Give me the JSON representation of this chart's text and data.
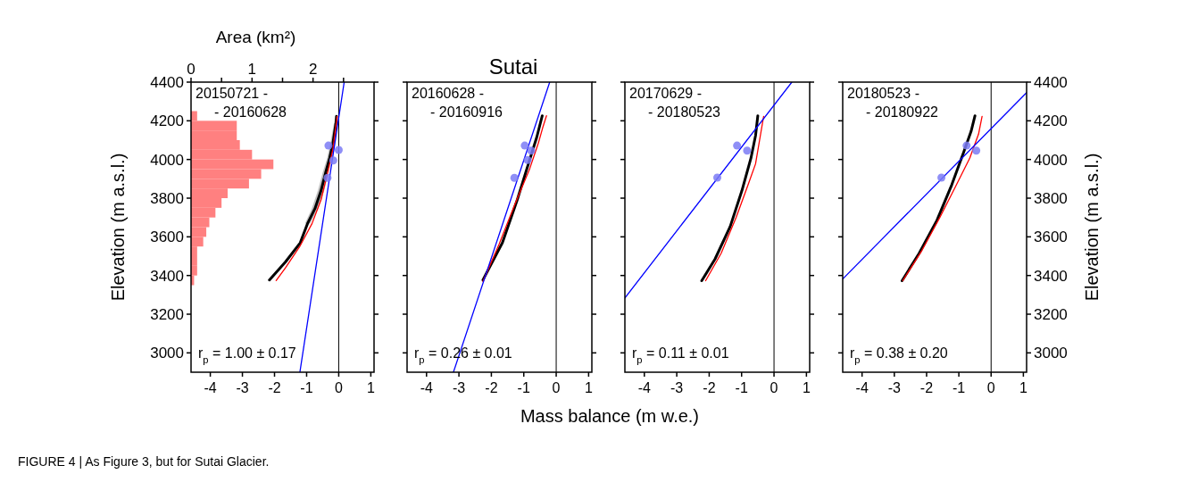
{
  "chart_data": [
    {
      "type": "histogram",
      "orientation": "horizontal",
      "xlabel": "Area (km²)",
      "xlim": [
        0,
        3
      ],
      "xticks": [
        0,
        {
          "value": 0.5,
          "label": null
        },
        1,
        {
          "value": 1.5,
          "label": null
        },
        2,
        {
          "value": 2.5,
          "label": null
        }
      ],
      "ylim": [
        2900,
        4400
      ],
      "tick_labels": "x",
      "color": "#ff8080",
      "bins": [
        3350,
        3400,
        3450,
        3500,
        3550,
        3600,
        3650,
        3700,
        3750,
        3800,
        3850,
        3900,
        3950,
        4000,
        4050,
        4100,
        4150,
        4200,
        4250
      ],
      "values": [
        0.05,
        0.1,
        0.1,
        0.1,
        0.2,
        0.25,
        0.3,
        0.4,
        0.5,
        0.6,
        0.95,
        1.15,
        1.35,
        1.0,
        0.8,
        0.75,
        0.75,
        0.1
      ]
    },
    {
      "type": "line",
      "orientation": "horizontal",
      "ylabel": "Elevation (m a.s.l.)",
      "xlim": [
        -4.6,
        1.1
      ],
      "xticks": [
        -4,
        -3,
        -2,
        -1,
        0,
        1
      ],
      "ylim": [
        2900,
        4400
      ],
      "yticks": [
        3000,
        3200,
        3400,
        3600,
        3800,
        4000,
        4200,
        4400
      ],
      "annotations": [
        "20150721 -\n- 20160628",
        "r$_{p}$ = 1.00 ± 0.17",
        "FIGURE 4 | As Figure 3, but for Sutai Glacier."
      ],
      "ref_lines": [
        {
          "axis": "x",
          "value": 0,
          "color": "#000000"
        }
      ],
      "series": [
        {
          "type": "line",
          "color": "#000000",
          "x": [
            3377,
            3470,
            3569,
            3669,
            3746,
            3839,
            3931,
            4008,
            4085,
            4185,
            4223
          ],
          "values": [
            -2.16,
            -1.66,
            -1.2,
            -0.97,
            -0.74,
            -0.55,
            -0.41,
            -0.28,
            -0.18,
            -0.09,
            -0.07
          ],
          "lower": [
            null,
            null,
            null,
            -1.05,
            -0.84,
            -0.65,
            -0.5,
            -0.36,
            -0.26,
            -0.15,
            null
          ],
          "upper": [
            null,
            null,
            null,
            -0.89,
            -0.64,
            -0.45,
            -0.32,
            -0.2,
            -0.1,
            -0.03,
            null
          ]
        },
        {
          "type": "line",
          "color": "#ff0000",
          "x": [
            3374,
            3439,
            3554,
            3669,
            3792,
            3915,
            4054,
            4223
          ],
          "values": [
            -1.95,
            -1.66,
            -1.2,
            -0.83,
            -0.55,
            -0.37,
            -0.18,
            -0.05
          ]
        },
        {
          "type": "line",
          "color": "#0000ff",
          "x": [
            2900,
            4400
          ],
          "values": [
            -1.21,
            0.17
          ]
        },
        {
          "type": "scatter",
          "color": "#7b7bf5",
          "marker": "circle",
          "x": [
            4072,
            4049,
            3995,
            3905
          ],
          "values": [
            -0.32,
            0,
            -0.17,
            -0.35
          ]
        }
      ]
    },
    {
      "type": "line",
      "orientation": "horizontal",
      "title": "Sutai",
      "xlabel": "Mass balance (m w.e.)",
      "xlim": [
        -4.6,
        1.1
      ],
      "xticks": [
        -4,
        -3,
        -2,
        -1,
        0,
        1
      ],
      "ylim": [
        2900,
        4400
      ],
      "yticks": [
        3000,
        3200,
        3400,
        3600,
        3800,
        4000,
        4200,
        4400
      ],
      "tick_labels": "x",
      "annotations": [
        "20160628 -\n- 20160916",
        "r$_{p}$ = 0.26 ± 0.01"
      ],
      "ref_lines": [
        {
          "axis": "x",
          "value": 0,
          "color": "#000000"
        }
      ],
      "series": [
        {
          "type": "line",
          "color": "#000000",
          "x": [
            3377,
            3569,
            3792,
            3992,
            4115,
            4226
          ],
          "values": [
            -2.26,
            -1.66,
            -1.2,
            -0.83,
            -0.6,
            -0.43
          ]
        },
        {
          "type": "line",
          "color": "#ff0000",
          "x": [
            3369,
            3562,
            3762,
            3946,
            4085,
            4162,
            4226
          ],
          "values": [
            -2.26,
            -1.76,
            -1.29,
            -0.83,
            -0.55,
            -0.42,
            -0.3
          ]
        },
        {
          "type": "line",
          "color": "#0000ff",
          "x": [
            2900,
            4400
          ],
          "values": [
            -3.17,
            -0.2
          ]
        },
        {
          "type": "scatter",
          "color": "#7b7bf5",
          "marker": "circle",
          "x": [
            4072,
            4046,
            3997,
            3905
          ],
          "values": [
            -0.97,
            -0.77,
            -0.88,
            -1.29
          ]
        }
      ]
    },
    {
      "type": "line",
      "orientation": "horizontal",
      "xlim": [
        -4.6,
        1.1
      ],
      "xticks": [
        -4,
        -3,
        -2,
        -1,
        0,
        1
      ],
      "ylim": [
        2900,
        4400
      ],
      "yticks": [
        3000,
        3200,
        3400,
        3600,
        3800,
        4000,
        4200,
        4400
      ],
      "tick_labels": "x",
      "annotations": [
        "20170629 -\n- 20180523",
        "r$_{p}$ = 0.11 ± 0.01"
      ],
      "ref_lines": [
        {
          "axis": "x",
          "value": 0,
          "color": "#000000"
        }
      ],
      "series": [
        {
          "type": "line",
          "color": "#000000",
          "x": [
            3373,
            3485,
            3654,
            3839,
            4008,
            4123,
            4226
          ],
          "values": [
            -2.23,
            -1.82,
            -1.35,
            -0.99,
            -0.71,
            -0.57,
            -0.5
          ]
        },
        {
          "type": "line",
          "color": "#ff0000",
          "x": [
            3373,
            3515,
            3700,
            3869,
            3977,
            4115,
            4223
          ],
          "values": [
            -2.11,
            -1.63,
            -1.17,
            -0.8,
            -0.57,
            -0.43,
            -0.32
          ]
        },
        {
          "type": "line",
          "color": "#0000ff",
          "x": [
            3284,
            4400
          ],
          "values": [
            -4.6,
            0.55
          ]
        },
        {
          "type": "scatter",
          "color": "#7b7bf5",
          "marker": "circle",
          "x": [
            4072,
            4046,
            3906
          ],
          "values": [
            -1.14,
            -0.83,
            -1.75
          ]
        }
      ]
    },
    {
      "type": "line",
      "orientation": "horizontal",
      "ylabel": "Elevation (m a.s.l.)",
      "xlim": [
        -4.6,
        1.1
      ],
      "xticks": [
        -4,
        -3,
        -2,
        -1,
        0,
        1
      ],
      "ylim": [
        2900,
        4400
      ],
      "yticks": [
        3000,
        3200,
        3400,
        3600,
        3800,
        4000,
        4200,
        4400
      ],
      "annotations": [
        "20180523 -\n- 20180922",
        "r$_{p}$ = 0.38 ± 0.20"
      ],
      "ref_lines": [
        {
          "axis": "x",
          "value": 0,
          "color": "#000000"
        }
      ],
      "series": [
        {
          "type": "line",
          "color": "#000000",
          "x": [
            3373,
            3515,
            3685,
            3869,
            4038,
            4146,
            4226
          ],
          "values": [
            -2.76,
            -2.23,
            -1.68,
            -1.22,
            -0.85,
            -0.62,
            -0.5
          ]
        },
        {
          "type": "line",
          "color": "#ff0000",
          "x": [
            3373,
            3531,
            3700,
            3854,
            4008,
            4131,
            4223
          ],
          "values": [
            -2.74,
            -2.14,
            -1.59,
            -1.12,
            -0.66,
            -0.39,
            -0.28
          ]
        },
        {
          "type": "line",
          "color": "#0000ff",
          "x": [
            3382,
            4346
          ],
          "values": [
            -4.6,
            1.1
          ]
        },
        {
          "type": "scatter",
          "color": "#7b7bf5",
          "marker": "circle",
          "x": [
            4072,
            4046,
            3906
          ],
          "values": [
            -0.76,
            -0.46,
            -1.54
          ]
        }
      ]
    }
  ]
}
